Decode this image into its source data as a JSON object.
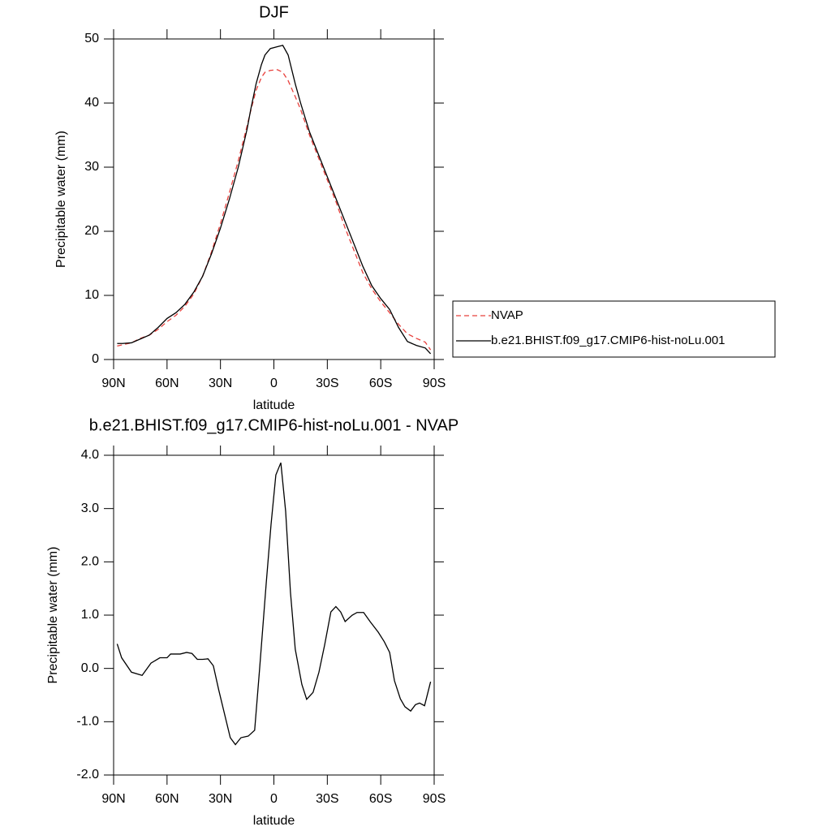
{
  "chart_data": [
    {
      "type": "line",
      "title": "DJF",
      "xlabel": "latitude",
      "ylabel": "Precipitable water (mm)",
      "x": [
        88,
        85,
        80,
        75,
        70,
        65,
        60,
        55,
        50,
        45,
        40,
        35,
        30,
        25,
        20,
        15,
        13,
        10,
        7,
        5,
        2,
        -2,
        -5,
        -8,
        -12,
        -15,
        -20,
        -25,
        -30,
        -35,
        -40,
        -45,
        -50,
        -55,
        -60,
        -65,
        -70,
        -75,
        -80,
        -85,
        -88
      ],
      "series": [
        {
          "name": "NVAP",
          "color": "#e8403c",
          "dashed": true,
          "values": [
            2.1,
            2.3,
            2.6,
            3.3,
            3.8,
            4.7,
            5.9,
            6.9,
            8.3,
            10.2,
            13.0,
            16.8,
            21.2,
            26.0,
            31.0,
            36.5,
            38.8,
            42.0,
            44.0,
            44.8,
            45.1,
            45.2,
            44.8,
            43.5,
            41.0,
            39.0,
            35.0,
            31.5,
            28.0,
            24.5,
            20.5,
            17.0,
            13.5,
            11.0,
            9.0,
            7.3,
            5.5,
            4.0,
            3.3,
            2.7,
            1.5
          ]
        },
        {
          "name": "b.e21.BHIST.f09_g17.CMIP6-hist-noLu.001",
          "color": "#000000",
          "dashed": false,
          "values": [
            2.5,
            2.5,
            2.6,
            3.2,
            3.8,
            5.0,
            6.4,
            7.3,
            8.6,
            10.5,
            13.0,
            16.5,
            20.5,
            25.0,
            30.0,
            36.0,
            39.0,
            43.0,
            46.0,
            47.5,
            48.5,
            48.8,
            49.0,
            47.5,
            43.0,
            40.0,
            35.5,
            32.0,
            28.5,
            25.0,
            21.5,
            18.0,
            14.5,
            11.5,
            9.5,
            7.8,
            5.0,
            2.8,
            2.2,
            1.8,
            0.9
          ]
        }
      ],
      "xlim": [
        90,
        -90
      ],
      "xticks": [
        {
          "value": 90,
          "label": "90N"
        },
        {
          "value": 60,
          "label": "60N"
        },
        {
          "value": 30,
          "label": "30N"
        },
        0,
        {
          "value": -30,
          "label": "30S"
        },
        {
          "value": -60,
          "label": "60S"
        },
        {
          "value": -90,
          "label": "90S"
        }
      ],
      "ylim": [
        0,
        50
      ],
      "yticks": [
        0,
        10,
        20,
        30,
        40,
        50
      ],
      "legend": "right"
    },
    {
      "type": "line",
      "title": "b.e21.BHIST.f09_g17.CMIP6-hist-noLu.001 - NVAP",
      "xlabel": "latitude",
      "ylabel": "Precipitable water (mm)",
      "x": [
        88,
        85.5,
        80,
        74,
        69,
        64,
        60,
        58,
        52.6,
        49,
        46,
        43,
        40,
        37,
        34,
        31,
        24.5,
        21.6,
        18.5,
        14.4,
        10.8,
        8,
        4.3,
        1.6,
        -1.1,
        -3.9,
        -6.6,
        -9.3,
        -12,
        -15.7,
        -18.4,
        -22,
        -25.3,
        -28.5,
        -32,
        -34.8,
        -37.5,
        -40,
        -44,
        -46.7,
        -50.4,
        -54,
        -58.6,
        -62,
        -65,
        -67.7,
        -71,
        -73.6,
        -76.8,
        -79.5,
        -81.8,
        -84.6,
        -88
      ],
      "values": [
        0.46,
        0.2,
        -0.07,
        -0.13,
        0.1,
        0.2,
        0.2,
        0.27,
        0.27,
        0.3,
        0.28,
        0.17,
        0.17,
        0.18,
        0.05,
        -0.4,
        -1.3,
        -1.43,
        -1.3,
        -1.27,
        -1.16,
        0.0,
        1.6,
        2.7,
        3.63,
        3.86,
        2.95,
        1.43,
        0.36,
        -0.3,
        -0.58,
        -0.45,
        -0.07,
        0.44,
        1.06,
        1.16,
        1.06,
        0.88,
        1.0,
        1.05,
        1.05,
        0.88,
        0.68,
        0.5,
        0.3,
        -0.23,
        -0.57,
        -0.72,
        -0.8,
        -0.68,
        -0.65,
        -0.7,
        -0.25
      ],
      "color": "#000000",
      "xlim": [
        90,
        -90
      ],
      "xticks": [
        {
          "value": 90,
          "label": "90N"
        },
        {
          "value": 60,
          "label": "60N"
        },
        {
          "value": 30,
          "label": "30N"
        },
        0,
        {
          "value": -30,
          "label": "30S"
        },
        {
          "value": -60,
          "label": "60S"
        },
        {
          "value": -90,
          "label": "90S"
        }
      ],
      "ylim": [
        -2,
        4
      ],
      "yticks": [
        {
          "value": -2,
          "label": "-2.0"
        },
        {
          "value": -1,
          "label": "-1.0"
        },
        {
          "value": 0,
          "label": "0.0"
        },
        {
          "value": 1,
          "label": "1.0"
        },
        {
          "value": 2,
          "label": "2.0"
        },
        {
          "value": 3,
          "label": "3.0"
        },
        {
          "value": 4,
          "label": "4.0"
        }
      ]
    }
  ]
}
